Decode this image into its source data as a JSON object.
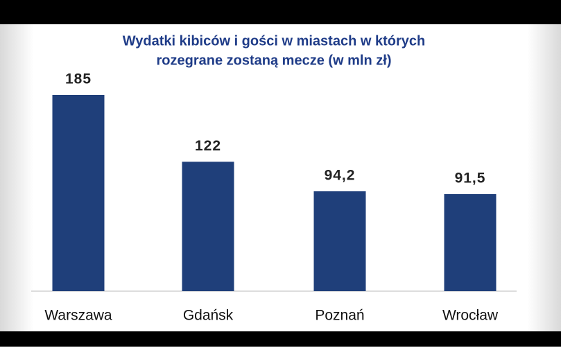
{
  "chart_data": {
    "type": "bar",
    "title": [
      "Wydatki kibiców i gości  w miastach  w których",
      "rozegrane zostaną mecze (w mln zł)"
    ],
    "categories": [
      "Warszawa",
      "Gdańsk",
      "Poznań",
      "Wrocław"
    ],
    "values": [
      185,
      122,
      94.2,
      91.5
    ],
    "value_labels": [
      "185",
      "122",
      "94,2",
      "91,5"
    ],
    "color": "#1f3f7a"
  }
}
